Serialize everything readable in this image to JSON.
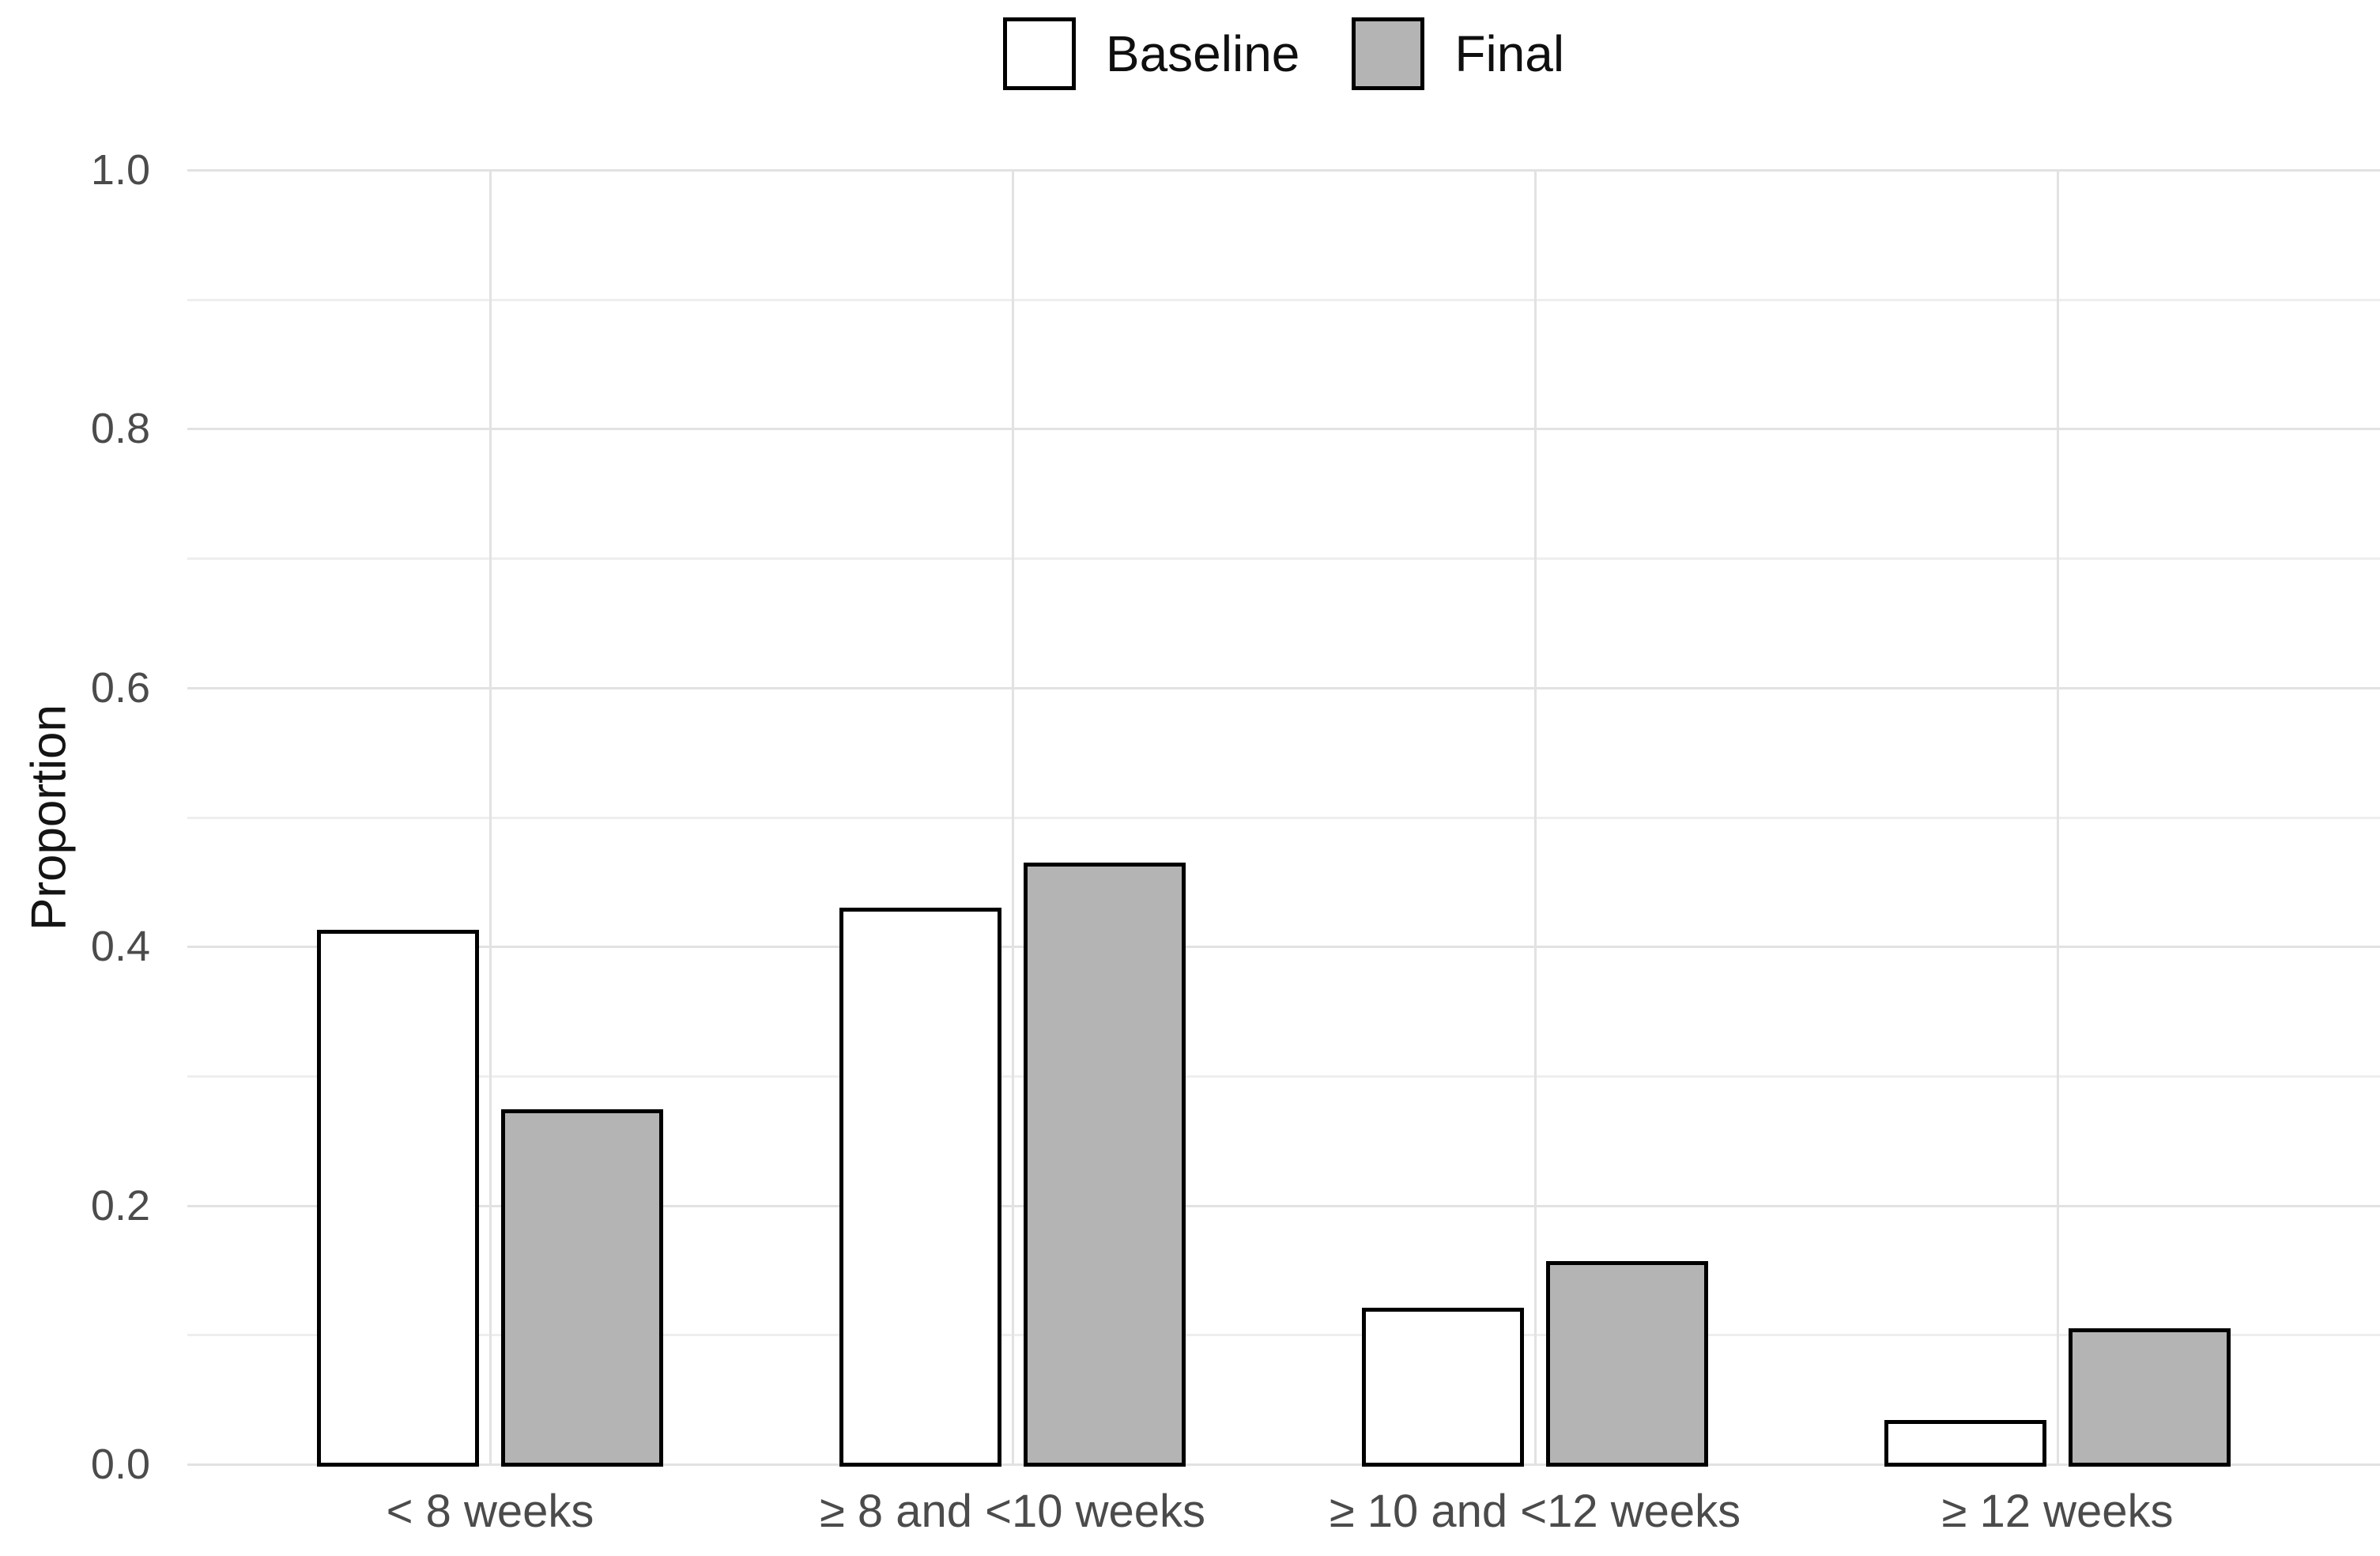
{
  "chart_data": {
    "type": "bar",
    "title": "",
    "xlabel": "",
    "ylabel": "Proportion",
    "categories": [
      "< 8 weeks",
      "≥ 8 and <10 weeks",
      "≥ 10 and <12 weeks",
      "≥ 12 weeks"
    ],
    "series": [
      {
        "name": "Baseline",
        "fill": "#ffffff",
        "values": [
          0.413,
          0.43,
          0.121,
          0.034
        ]
      },
      {
        "name": "Final",
        "fill": "#b4b4b4",
        "values": [
          0.274,
          0.465,
          0.157,
          0.105
        ]
      }
    ],
    "ylim": [
      0,
      1
    ],
    "yticks": [
      0.0,
      0.2,
      0.4,
      0.6,
      0.8,
      1.0
    ],
    "ytick_labels": [
      "0.0",
      "0.2",
      "0.4",
      "0.6",
      "0.8",
      "1.0"
    ],
    "yticks_minor": [
      0.1,
      0.3,
      0.5,
      0.7,
      0.9
    ],
    "grid": "major+minor horizontal, major vertical at category centers",
    "legend_position": "top-center",
    "bar_border_color": "#000000",
    "colors": {
      "background": "#ffffff",
      "major_grid": "#e2e2e2",
      "minor_grid": "#eeeeee",
      "tick_text": "#4b4b4b",
      "axis_title_text": "#141414",
      "legend_text": "#0f0f0f"
    }
  }
}
